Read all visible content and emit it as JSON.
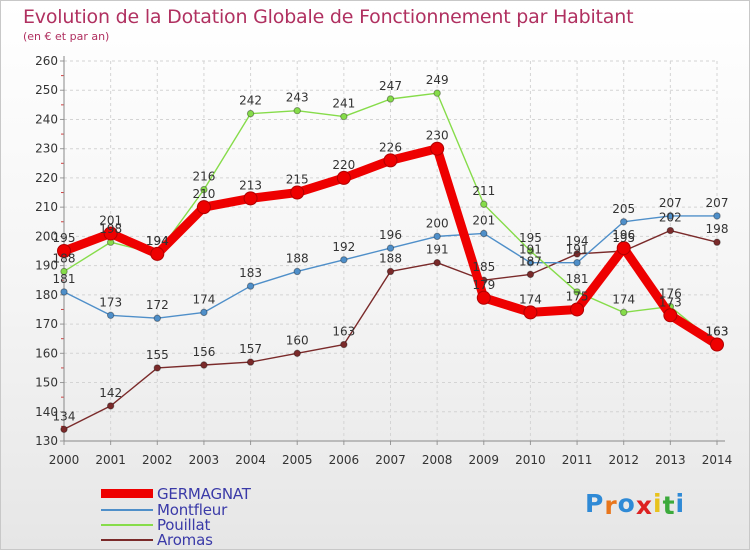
{
  "chart_data": {
    "type": "line",
    "title": "Evolution de la Dotation Globale de Fonctionnement par Habitant",
    "subtitle": "(en € et par an)",
    "x": [
      "2000",
      "2001",
      "2002",
      "2003",
      "2004",
      "2005",
      "2006",
      "2007",
      "2008",
      "2009",
      "2010",
      "2011",
      "2012",
      "2013",
      "2014"
    ],
    "ylim": [
      130,
      260
    ],
    "yticks": [
      130,
      140,
      150,
      160,
      170,
      180,
      190,
      200,
      210,
      220,
      230,
      240,
      250,
      260
    ],
    "grid": true,
    "series": [
      {
        "name": "GERMAGNAT",
        "color": "#ee0000",
        "values": [
          195,
          201,
          194,
          210,
          213,
          215,
          220,
          226,
          230,
          179,
          174,
          175,
          196,
          173,
          163
        ]
      },
      {
        "name": "Montfleur",
        "color": "#4f8fc9",
        "values": [
          181,
          173,
          172,
          174,
          183,
          188,
          192,
          196,
          200,
          201,
          191,
          191,
          205,
          207,
          207
        ]
      },
      {
        "name": "Pouillat",
        "color": "#86dc4a",
        "values": [
          188,
          198,
          194,
          216,
          242,
          243,
          241,
          247,
          249,
          211,
          195,
          181,
          174,
          176,
          163
        ]
      },
      {
        "name": "Aromas",
        "color": "#7a2a2a",
        "values": [
          134,
          142,
          155,
          156,
          157,
          160,
          163,
          188,
          191,
          185,
          187,
          194,
          195,
          202,
          198
        ]
      }
    ]
  },
  "logo": {
    "letters": [
      "P",
      "r",
      "o",
      "x",
      "i",
      "t",
      "i"
    ],
    "colors": [
      "#2f8ad6",
      "#e8761c",
      "#2f8ad6",
      "#dd2222",
      "#e8c21c",
      "#3caa3c",
      "#2f8ad6"
    ]
  }
}
